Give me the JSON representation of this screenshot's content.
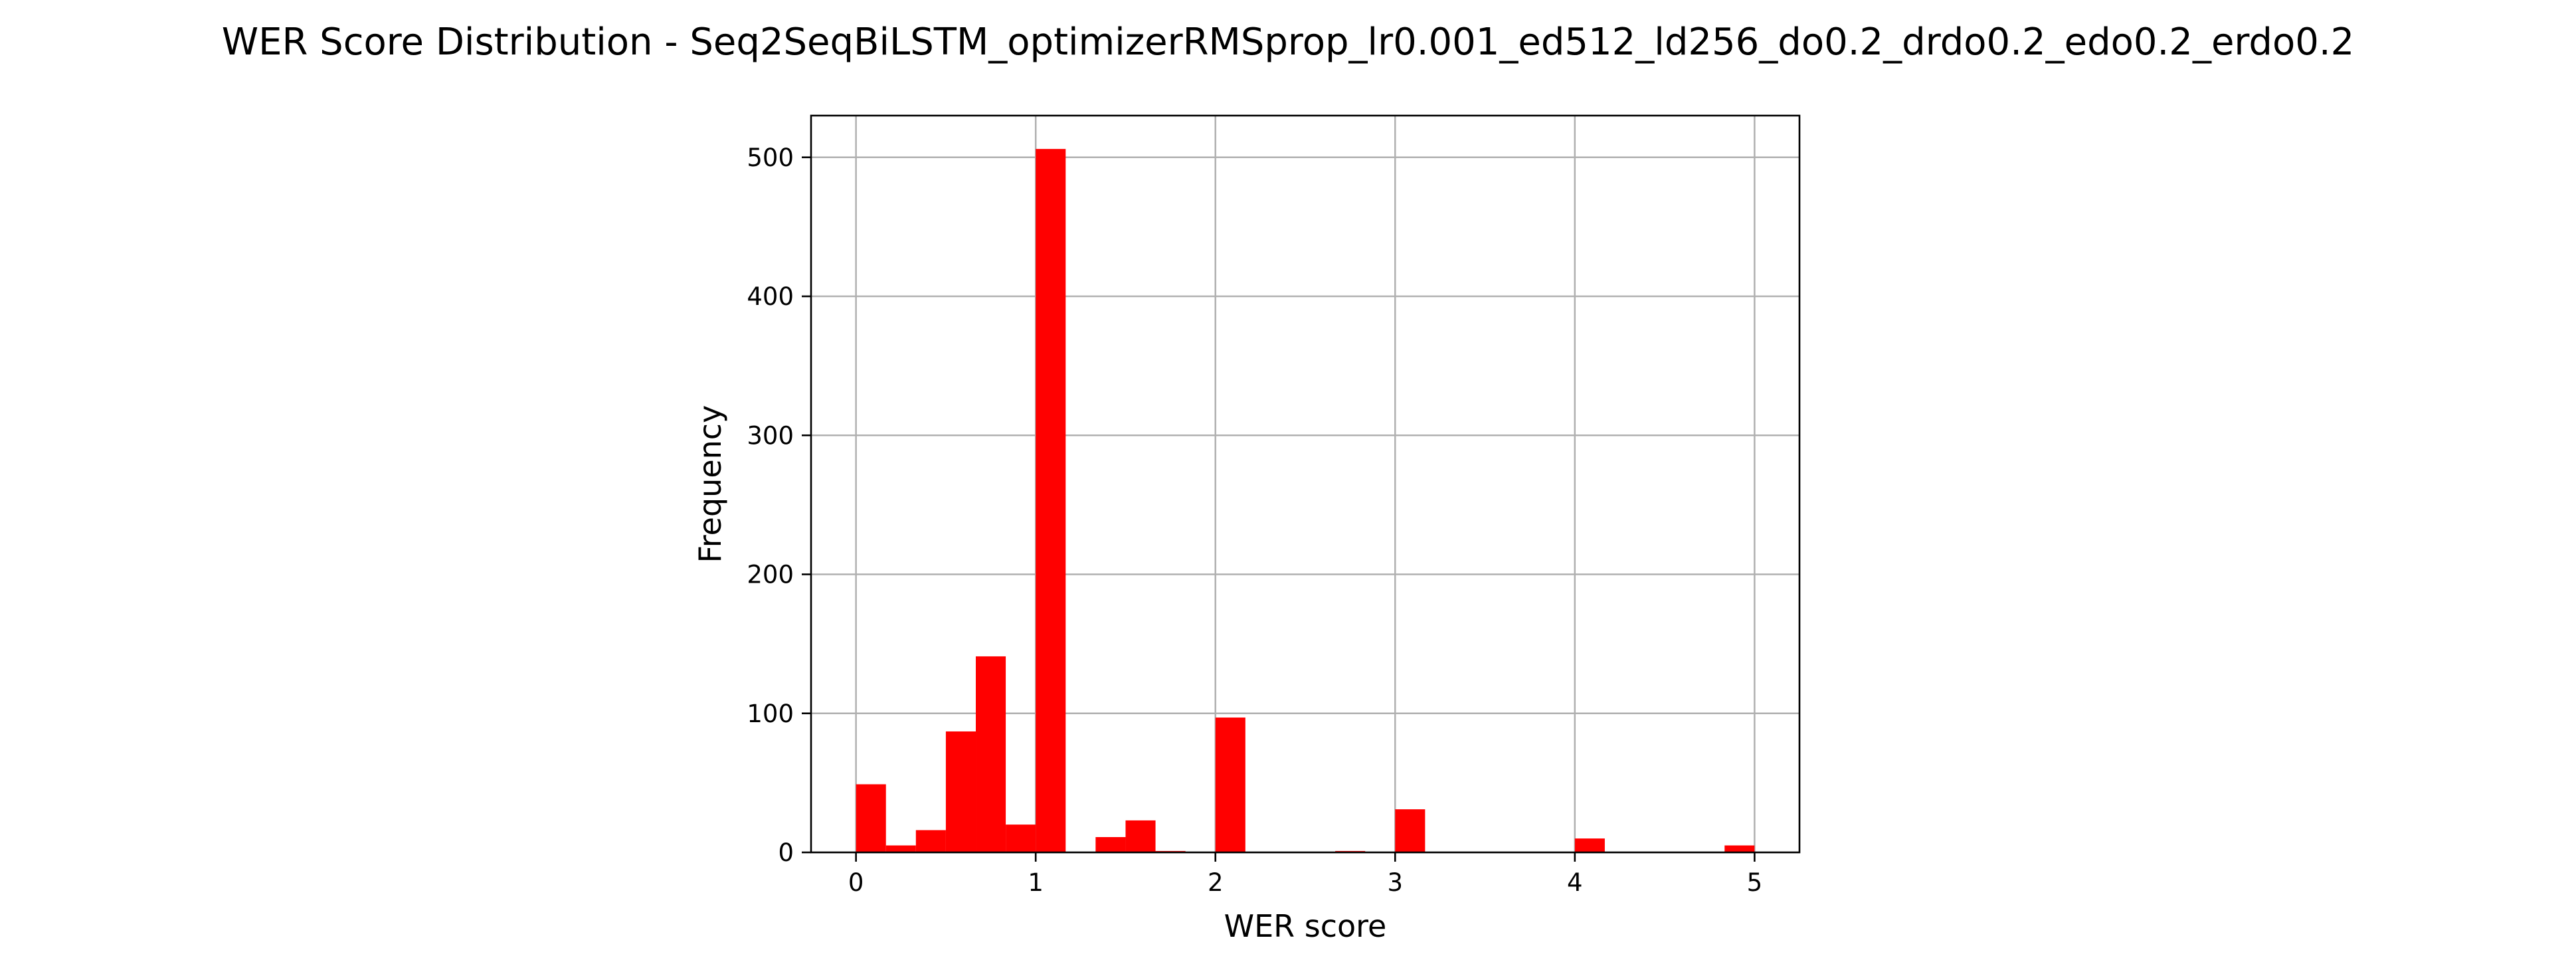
{
  "chart_data": {
    "type": "bar",
    "title": "WER Score Distribution - Seq2SeqBiLSTM_optimizerRMSprop_lr0.001_ed512_ld256_do0.2_drdo0.2_edo0.2_erdo0.2",
    "xlabel": "WER score",
    "ylabel": "Frequency",
    "xlim": [
      -0.25,
      5.25
    ],
    "ylim": [
      0,
      530
    ],
    "xticks": [
      0,
      1,
      2,
      3,
      4,
      5
    ],
    "yticks": [
      0,
      100,
      200,
      300,
      400,
      500
    ],
    "grid": true,
    "bar_color": "#ff0000",
    "bin_edges": [
      0,
      0.1667,
      0.3333,
      0.5,
      0.6667,
      0.8333,
      1.0,
      1.1667,
      1.3333,
      1.5,
      1.6667,
      1.8333,
      2.0,
      2.1667,
      2.3333,
      2.5,
      2.6667,
      2.8333,
      3.0,
      3.1667,
      3.3333,
      3.5,
      3.6667,
      3.8333,
      4.0,
      4.1667,
      4.3333,
      4.5,
      4.6667,
      4.8333,
      5.0
    ],
    "values": [
      49,
      5,
      16,
      87,
      141,
      20,
      506,
      0,
      11,
      23,
      1,
      0,
      97,
      0,
      0,
      0,
      1,
      0,
      31,
      0,
      0,
      0,
      0,
      0,
      10,
      0,
      0,
      0,
      0,
      5
    ]
  }
}
